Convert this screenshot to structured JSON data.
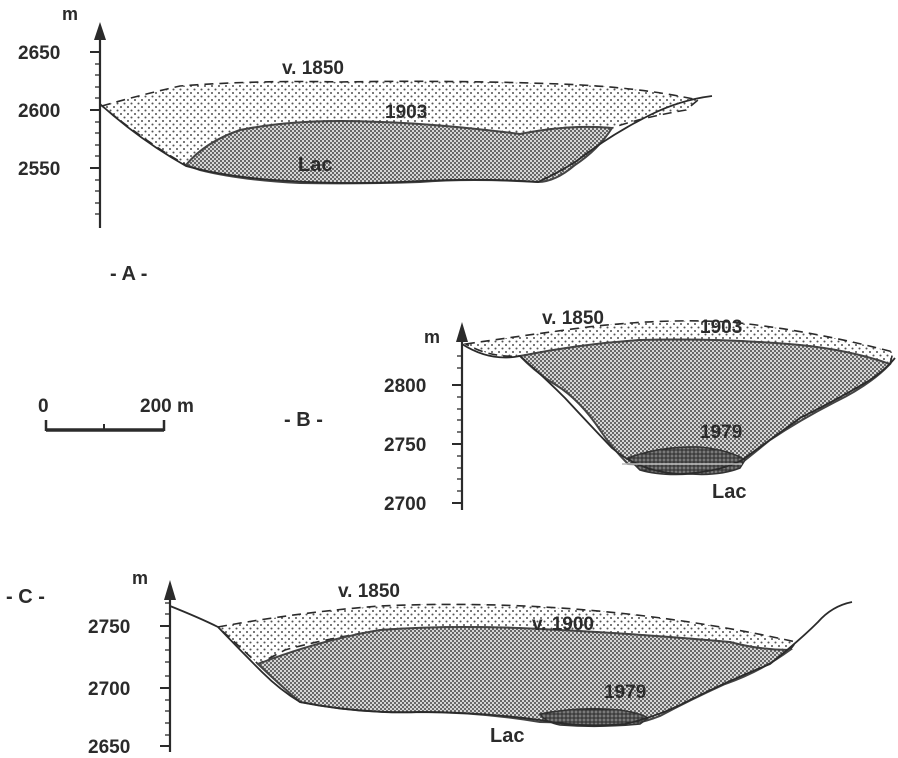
{
  "scale_bar": {
    "start": "0",
    "end": "200 m"
  },
  "profiles": [
    {
      "panel_label": "- A -",
      "unit": "m",
      "ticks": [
        "2650",
        "2600",
        "2550"
      ],
      "years": [
        "v. 1850",
        "1903"
      ],
      "lake_label": "Lac"
    },
    {
      "panel_label": "- B -",
      "unit": "m",
      "ticks": [
        "2800",
        "2750",
        "2700"
      ],
      "years": [
        "v. 1850",
        "1903",
        "1979"
      ],
      "lake_label": "Lac"
    },
    {
      "panel_label": "- C -",
      "unit": "m",
      "ticks": [
        "2750",
        "2700",
        "2650"
      ],
      "years": [
        "v. 1850",
        "v. 1900",
        "1979"
      ],
      "lake_label": "Lac"
    }
  ],
  "colors": {
    "ink": "#2b2b2b",
    "ice_light_dots": "#555555",
    "ice_dense_dots": "#3a3a3a"
  }
}
